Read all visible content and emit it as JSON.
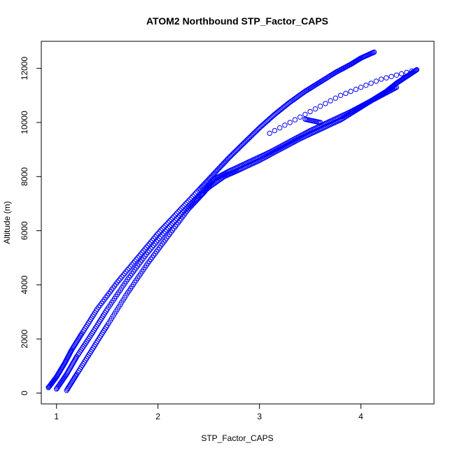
{
  "chart_data": {
    "type": "scatter",
    "title": "ATOM2 Northbound STP_Factor_CAPS",
    "xlabel": "STP_Factor_CAPS",
    "ylabel": "Altitude (m)",
    "xlim": [
      0.85,
      4.72
    ],
    "ylim": [
      -400,
      13000
    ],
    "xticks": [
      1,
      2,
      3,
      4
    ],
    "yticks": [
      0,
      2000,
      4000,
      6000,
      8000,
      10000,
      12000
    ],
    "grid": false,
    "marker": "open-circle",
    "color": "#0000ff",
    "series": [
      {
        "x": [
          0.92,
          1.0,
          1.08,
          1.15,
          1.25,
          1.4,
          1.6,
          1.8,
          2.0,
          2.2,
          2.4,
          2.55,
          2.7,
          2.85,
          3.0,
          3.15,
          3.3,
          3.45,
          3.6,
          3.75,
          3.9,
          4.0,
          4.13
        ],
        "y": [
          200,
          600,
          1100,
          1600,
          2200,
          3100,
          4100,
          5000,
          5900,
          6700,
          7500,
          8100,
          8700,
          9250,
          9800,
          10300,
          10750,
          11150,
          11500,
          11850,
          12150,
          12380,
          12600
        ]
      },
      {
        "x": [
          1.0,
          1.1,
          1.2,
          1.35,
          1.5,
          1.7,
          1.9,
          2.1,
          2.3,
          2.5,
          2.65,
          2.8,
          3.0,
          3.2,
          3.4,
          3.6,
          3.8,
          3.95,
          4.1,
          4.25,
          4.35,
          4.45,
          4.55
        ],
        "y": [
          150,
          700,
          1350,
          2200,
          3100,
          4200,
          5200,
          6100,
          6900,
          7600,
          8000,
          8250,
          8600,
          9000,
          9400,
          9750,
          10100,
          10450,
          10800,
          11150,
          11450,
          11700,
          11950
        ]
      },
      {
        "x": [
          1.1,
          1.2,
          1.35,
          1.5,
          1.7,
          1.9,
          2.1,
          2.3,
          2.45,
          2.55,
          2.7,
          2.9,
          3.1,
          3.3,
          3.5,
          3.7,
          3.9,
          4.05,
          4.2,
          4.35
        ],
        "y": [
          100,
          700,
          1600,
          2500,
          3700,
          4800,
          5800,
          6800,
          7400,
          7900,
          8200,
          8550,
          8900,
          9300,
          9700,
          10050,
          10400,
          10700,
          11000,
          11300
        ]
      },
      {
        "x": [
          3.1,
          3.2,
          3.3,
          3.4,
          3.5,
          3.6,
          3.7,
          3.8,
          3.9,
          4.0,
          4.1,
          4.2,
          4.3,
          4.4,
          4.5
        ],
        "y": [
          9600,
          9800,
          10000,
          10200,
          10400,
          10600,
          10800,
          11000,
          11150,
          11300,
          11450,
          11600,
          11700,
          11800,
          11900
        ]
      },
      {
        "x": [
          3.45,
          3.5,
          3.55,
          3.6
        ],
        "y": [
          10120,
          10080,
          10040,
          10000
        ]
      }
    ]
  }
}
